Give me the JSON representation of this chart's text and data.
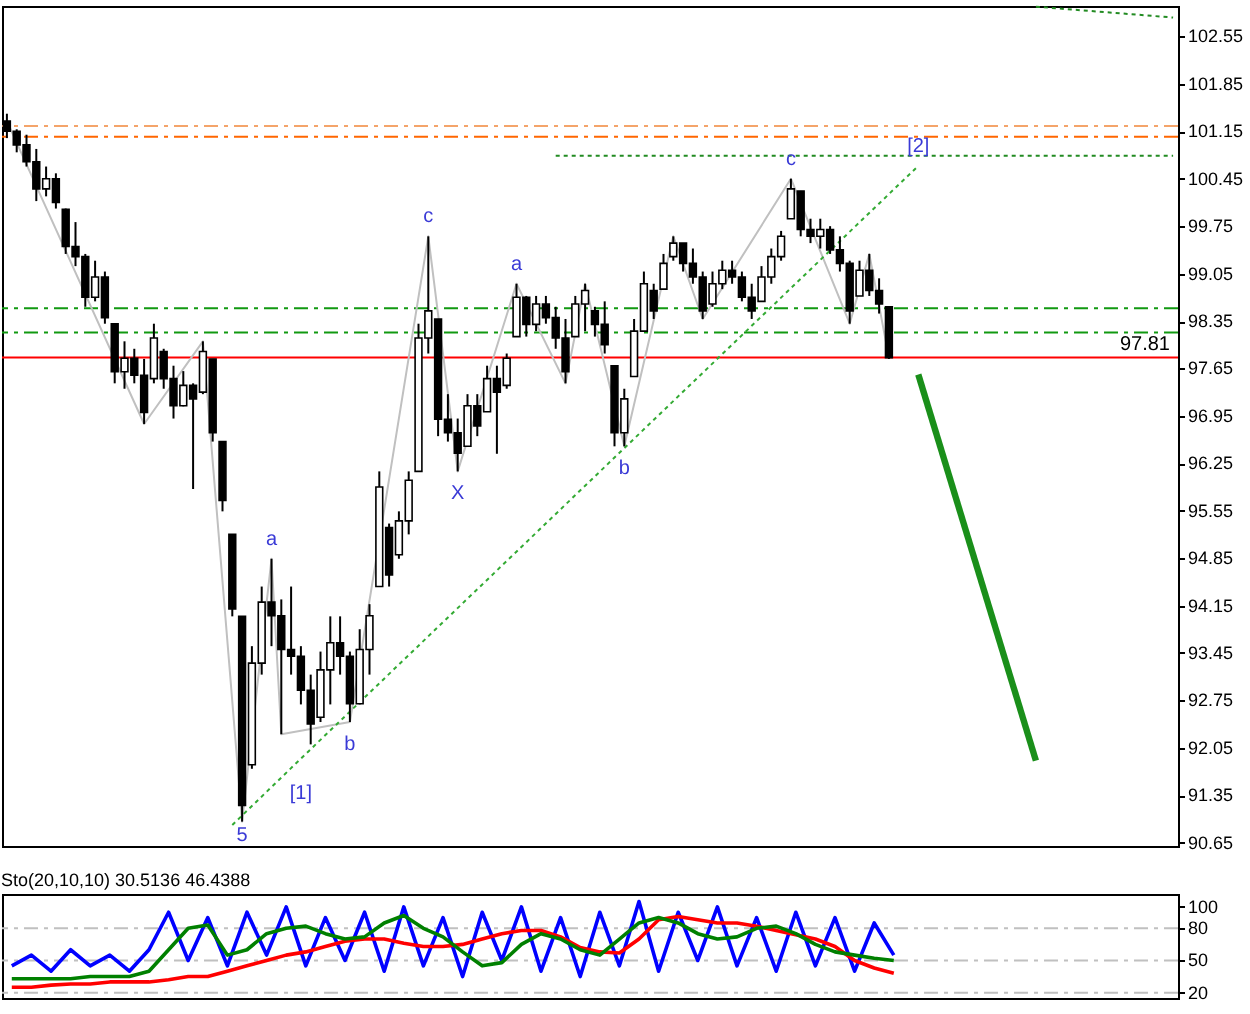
{
  "chart_data": [
    {
      "type": "candlestick",
      "color": "#000000",
      "categories": [
        null,
        null,
        null,
        null,
        null,
        null,
        null,
        null,
        null,
        null,
        null,
        null,
        null,
        null,
        null,
        null,
        null,
        null,
        null,
        null,
        null,
        null,
        null,
        null,
        null,
        null,
        null,
        null,
        null,
        null,
        null,
        null,
        null,
        null,
        null,
        null,
        null,
        null,
        null,
        null,
        null,
        null,
        null,
        null,
        null,
        null,
        null,
        null,
        null,
        null,
        null,
        null,
        null,
        null,
        null,
        null,
        null,
        null,
        null,
        null,
        null,
        null,
        null,
        null,
        null,
        null,
        null,
        null,
        null,
        null,
        null,
        null,
        null,
        null,
        null,
        null,
        null,
        null,
        null,
        null,
        null,
        null,
        null,
        null,
        null,
        null,
        null,
        null,
        null,
        null,
        null,
        null,
        null,
        null,
        null,
        null,
        null,
        null,
        null,
        null,
        null,
        null,
        null,
        null,
        null,
        null,
        null,
        null,
        null,
        null,
        null,
        null,
        null,
        null,
        null,
        null,
        null,
        null,
        null,
        null
      ],
      "ohlc": [
        [
          101.3,
          101.41,
          101.05,
          101.15
        ],
        [
          101.15,
          101.18,
          100.84,
          100.95
        ],
        [
          100.95,
          101.1,
          100.63,
          100.7
        ],
        [
          100.7,
          100.89,
          100.12,
          100.3
        ],
        [
          100.3,
          100.63,
          100.19,
          100.45
        ],
        [
          100.45,
          100.53,
          100.01,
          100.1
        ],
        [
          100.0,
          100.01,
          99.34,
          99.45
        ],
        [
          99.45,
          99.81,
          99.16,
          99.3
        ],
        [
          99.3,
          99.34,
          98.56,
          98.7
        ],
        [
          98.7,
          99.24,
          98.64,
          99.0
        ],
        [
          99.0,
          99.08,
          98.31,
          98.4
        ],
        [
          98.31,
          98.31,
          97.43,
          97.6
        ],
        [
          97.6,
          98.05,
          97.35,
          97.8
        ],
        [
          97.8,
          97.94,
          97.43,
          97.55
        ],
        [
          97.55,
          97.79,
          96.83,
          97.0
        ],
        [
          97.5,
          98.31,
          97.43,
          98.1
        ],
        [
          97.9,
          97.94,
          97.35,
          97.5
        ],
        [
          97.5,
          97.69,
          96.91,
          97.1
        ],
        [
          97.1,
          97.61,
          97.09,
          97.4
        ],
        [
          97.4,
          97.43,
          95.87,
          97.2
        ],
        [
          97.3,
          98.05,
          97.27,
          97.9
        ],
        [
          97.79,
          97.79,
          96.57,
          96.7
        ],
        [
          96.57,
          96.57,
          95.54,
          95.7
        ],
        [
          95.2,
          95.2,
          93.99,
          94.1
        ],
        [
          93.99,
          93.99,
          90.96,
          91.2
        ],
        [
          91.8,
          93.55,
          91.74,
          93.3
        ],
        [
          93.3,
          94.43,
          93.13,
          94.2
        ],
        [
          94.2,
          94.84,
          93.55,
          94.0
        ],
        [
          94.0,
          94.24,
          92.25,
          93.5
        ],
        [
          93.5,
          94.43,
          93.13,
          93.4
        ],
        [
          93.4,
          93.55,
          92.69,
          92.9
        ],
        [
          92.9,
          93.13,
          92.1,
          92.4
        ],
        [
          92.5,
          93.47,
          92.43,
          93.2
        ],
        [
          93.2,
          93.99,
          92.69,
          93.6
        ],
        [
          93.6,
          93.99,
          93.13,
          93.4
        ],
        [
          93.4,
          93.47,
          92.43,
          92.7
        ],
        [
          92.7,
          93.8,
          92.69,
          93.5
        ],
        [
          93.5,
          94.17,
          93.13,
          94.0
        ],
        [
          94.43,
          96.13,
          94.43,
          95.9
        ],
        [
          95.3,
          95.36,
          94.43,
          94.6
        ],
        [
          94.9,
          95.54,
          94.84,
          95.4
        ],
        [
          95.4,
          96.13,
          95.2,
          96.0
        ],
        [
          96.13,
          98.31,
          96.13,
          98.1
        ],
        [
          98.1,
          99.6,
          97.87,
          98.5
        ],
        [
          98.38,
          98.38,
          96.65,
          96.9
        ],
        [
          96.9,
          97.27,
          96.57,
          96.7
        ],
        [
          96.7,
          96.91,
          96.13,
          96.4
        ],
        [
          96.5,
          97.27,
          96.5,
          97.1
        ],
        [
          97.1,
          97.27,
          96.65,
          96.8
        ],
        [
          97.01,
          97.69,
          97.01,
          97.5
        ],
        [
          97.5,
          97.69,
          96.39,
          97.3
        ],
        [
          97.4,
          97.87,
          97.35,
          97.8
        ],
        [
          98.12,
          98.9,
          98.12,
          98.7
        ],
        [
          98.7,
          98.72,
          98.12,
          98.3
        ],
        [
          98.3,
          98.72,
          98.2,
          98.6
        ],
        [
          98.6,
          98.72,
          98.31,
          98.4
        ],
        [
          98.4,
          98.56,
          97.94,
          98.1
        ],
        [
          98.1,
          98.38,
          97.43,
          97.6
        ],
        [
          98.12,
          98.72,
          98.12,
          98.6
        ],
        [
          98.6,
          98.9,
          98.2,
          98.8
        ],
        [
          98.5,
          98.56,
          98.12,
          98.3
        ],
        [
          98.3,
          98.64,
          97.87,
          98.0
        ],
        [
          97.69,
          97.69,
          96.5,
          96.7
        ],
        [
          96.7,
          97.35,
          96.5,
          97.2
        ],
        [
          97.53,
          98.38,
          97.53,
          98.2
        ],
        [
          98.2,
          99.08,
          98.2,
          98.9
        ],
        [
          98.8,
          98.9,
          98.38,
          98.5
        ],
        [
          98.82,
          99.34,
          98.82,
          99.2
        ],
        [
          99.3,
          99.6,
          99.24,
          99.5
        ],
        [
          99.5,
          99.5,
          99.08,
          99.2
        ],
        [
          99.2,
          99.42,
          98.9,
          99.0
        ],
        [
          99.0,
          99.08,
          98.38,
          98.5
        ],
        [
          98.6,
          99.08,
          98.56,
          98.9
        ],
        [
          98.9,
          99.24,
          98.82,
          99.1
        ],
        [
          99.1,
          99.24,
          98.9,
          99.0
        ],
        [
          99.0,
          99.08,
          98.64,
          98.7
        ],
        [
          98.7,
          98.9,
          98.38,
          98.5
        ],
        [
          98.64,
          99.16,
          98.64,
          99.0
        ],
        [
          99.0,
          99.42,
          98.9,
          99.3
        ],
        [
          99.3,
          99.68,
          99.24,
          99.6
        ],
        [
          99.86,
          100.45,
          99.86,
          100.3
        ],
        [
          100.27,
          100.27,
          99.6,
          99.7
        ],
        [
          99.7,
          99.86,
          99.5,
          99.6
        ],
        [
          99.6,
          99.86,
          99.42,
          99.7
        ],
        [
          99.7,
          99.75,
          99.34,
          99.4
        ],
        [
          99.4,
          99.6,
          99.08,
          99.2
        ],
        [
          99.2,
          99.24,
          98.31,
          98.5
        ],
        [
          98.72,
          99.24,
          98.72,
          99.1
        ],
        [
          99.1,
          99.34,
          98.72,
          98.8
        ],
        [
          98.8,
          98.98,
          98.46,
          98.6
        ],
        [
          98.56,
          98.56,
          97.79,
          97.81
        ],
        null,
        null,
        null,
        null,
        null,
        null,
        null,
        null,
        null,
        null,
        null,
        null,
        null,
        null,
        null,
        null,
        null,
        null,
        null,
        null,
        null,
        null,
        null,
        null,
        null,
        null,
        null,
        null,
        null
      ],
      "series": [
        {
          "type": "line",
          "color": "#c0c0c0",
          "values": [
            101.3,
            null,
            null,
            null,
            null,
            null,
            null,
            null,
            null,
            null,
            null,
            null,
            null,
            null,
            96.83,
            null,
            null,
            null,
            null,
            null,
            98.05,
            null,
            null,
            null,
            90.96,
            null,
            null,
            94.84,
            92.25,
            null,
            null,
            null,
            null,
            null,
            null,
            92.43,
            null,
            null,
            null,
            null,
            null,
            null,
            null,
            99.6,
            null,
            null,
            96.13,
            null,
            null,
            null,
            null,
            null,
            98.9,
            null,
            null,
            null,
            null,
            97.43,
            null,
            98.9,
            null,
            null,
            null,
            96.5,
            null,
            null,
            null,
            null,
            99.6,
            null,
            null,
            98.38,
            null,
            null,
            null,
            null,
            null,
            null,
            null,
            null,
            100.45,
            null,
            null,
            null,
            null,
            null,
            98.31,
            null,
            99.34,
            null,
            97.81,
            null,
            null,
            null,
            null,
            null,
            null,
            null,
            null,
            null,
            null,
            null,
            null,
            null,
            null,
            null,
            null,
            null,
            null,
            null,
            null,
            null,
            null,
            null,
            null,
            null,
            null,
            null,
            null,
            null
          ]
        },
        {
          "type": "line",
          "color": "#33aa33",
          "line_style": "dotted",
          "values": [
            null,
            null,
            null,
            null,
            null,
            null,
            null,
            null,
            null,
            null,
            null,
            null,
            null,
            null,
            null,
            null,
            null,
            null,
            null,
            null,
            null,
            null,
            null,
            90.91,
            null,
            null,
            null,
            null,
            null,
            null,
            91.89,
            null,
            null,
            null,
            null,
            null,
            null,
            null,
            null,
            null,
            null,
            null,
            null,
            null,
            null,
            null,
            null,
            null,
            null,
            null,
            null,
            null,
            null,
            null,
            null,
            null,
            null,
            null,
            null,
            null,
            null,
            null,
            null,
            null,
            null,
            null,
            null,
            null,
            null,
            null,
            null,
            null,
            null,
            null,
            null,
            null,
            null,
            null,
            null,
            null,
            null,
            null,
            null,
            null,
            null,
            null,
            null,
            null,
            null,
            null,
            null,
            null,
            null,
            100.64,
            null,
            null,
            null,
            null,
            null,
            null,
            null,
            null,
            null,
            null,
            null,
            null,
            null,
            null,
            null,
            null,
            null,
            null,
            null,
            null,
            null,
            null,
            null,
            null,
            null,
            null
          ]
        },
        {
          "type": "line",
          "color": "#228b22",
          "line_style": "dotted",
          "values": [
            null,
            null,
            null,
            null,
            null,
            null,
            null,
            null,
            null,
            null,
            null,
            null,
            null,
            null,
            null,
            null,
            null,
            null,
            null,
            null,
            null,
            null,
            null,
            null,
            null,
            null,
            null,
            null,
            null,
            null,
            null,
            null,
            null,
            null,
            null,
            null,
            null,
            null,
            null,
            null,
            null,
            null,
            null,
            null,
            null,
            null,
            null,
            null,
            null,
            null,
            null,
            null,
            null,
            null,
            null,
            null,
            100.79,
            null,
            null,
            null,
            null,
            null,
            null,
            null,
            null,
            null,
            null,
            null,
            null,
            null,
            null,
            null,
            null,
            null,
            null,
            null,
            null,
            null,
            null,
            null,
            null,
            null,
            null,
            null,
            null,
            null,
            null,
            null,
            null,
            null,
            null,
            null,
            null,
            null,
            null,
            null,
            null,
            null,
            null,
            null,
            null,
            null,
            null,
            null,
            null,
            null,
            null,
            null,
            null,
            null,
            null,
            null,
            null,
            null,
            null,
            null,
            null,
            null,
            null,
            100.79
          ]
        },
        {
          "type": "line",
          "color": "#228b22",
          "line_style": "dotted",
          "values": [
            null,
            null,
            null,
            null,
            null,
            null,
            null,
            null,
            null,
            null,
            null,
            null,
            null,
            null,
            null,
            null,
            null,
            null,
            null,
            null,
            null,
            null,
            null,
            null,
            null,
            null,
            null,
            null,
            null,
            null,
            null,
            null,
            null,
            null,
            null,
            null,
            null,
            null,
            null,
            null,
            null,
            null,
            null,
            null,
            null,
            null,
            null,
            null,
            null,
            null,
            null,
            null,
            null,
            null,
            null,
            null,
            null,
            null,
            null,
            null,
            null,
            null,
            null,
            null,
            null,
            null,
            null,
            null,
            null,
            null,
            null,
            null,
            null,
            null,
            null,
            null,
            null,
            null,
            null,
            null,
            null,
            null,
            null,
            null,
            null,
            null,
            null,
            null,
            null,
            null,
            null,
            null,
            null,
            null,
            null,
            null,
            null,
            null,
            null,
            null,
            null,
            null,
            null,
            null,
            null,
            102.99,
            null,
            null,
            null,
            null,
            null,
            null,
            null,
            null,
            null,
            null,
            null,
            null,
            null,
            102.83
          ]
        },
        {
          "type": "line",
          "color": "#1a8f1a",
          "values": [
            null,
            null,
            null,
            null,
            null,
            null,
            null,
            null,
            null,
            null,
            null,
            null,
            null,
            null,
            null,
            null,
            null,
            null,
            null,
            null,
            null,
            null,
            null,
            null,
            null,
            null,
            null,
            null,
            null,
            null,
            null,
            null,
            null,
            null,
            null,
            null,
            null,
            null,
            null,
            null,
            null,
            null,
            null,
            null,
            null,
            null,
            null,
            null,
            null,
            null,
            null,
            null,
            null,
            null,
            null,
            null,
            null,
            null,
            null,
            null,
            null,
            null,
            null,
            null,
            null,
            null,
            null,
            null,
            null,
            null,
            null,
            null,
            null,
            null,
            null,
            null,
            null,
            null,
            null,
            null,
            null,
            null,
            null,
            null,
            null,
            null,
            null,
            null,
            null,
            null,
            null,
            null,
            null,
            97.56,
            null,
            null,
            null,
            null,
            null,
            null,
            null,
            null,
            null,
            null,
            null,
            91.86,
            null,
            null,
            null,
            null,
            null,
            null,
            null,
            null,
            null,
            null,
            null,
            null,
            null,
            null
          ]
        }
      ],
      "annotations": [
        {
          "text": "5",
          "y": 90.96
        },
        {
          "text": "a",
          "y": 94.84
        },
        {
          "text": "b",
          "y": 92.43
        },
        {
          "text": "c",
          "y": 99.6
        },
        {
          "text": "X",
          "y": 96.13
        },
        {
          "text": "a",
          "y": 98.9
        },
        {
          "text": "b",
          "y": 96.5
        },
        {
          "text": "c",
          "y": 100.45
        },
        {
          "text": "[1]",
          "y": 91.89
        },
        {
          "text": "[2]",
          "y": 100.64
        }
      ],
      "ylim": [
        90.6,
        103.0
      ],
      "yticks": [
        102.55,
        101.85,
        101.15,
        100.45,
        99.75,
        99.05,
        98.35,
        97.65,
        96.95,
        96.25,
        95.55,
        94.85,
        94.15,
        93.45,
        92.75,
        92.05,
        91.35,
        90.65
      ],
      "tick_labels": "y",
      "ref_lines": [
        {
          "axis": "y",
          "value": 101.23,
          "color": "#f4a46a",
          "line_style": "dashed"
        },
        {
          "axis": "y",
          "value": 101.07,
          "color": "#ff6600",
          "line_style": "dashed"
        },
        {
          "axis": "y",
          "value": 98.54,
          "color": "#119911",
          "line_style": "dashed"
        },
        {
          "axis": "y",
          "value": 98.18,
          "color": "#119911",
          "line_style": "dashed"
        },
        {
          "axis": "y",
          "value": 97.81,
          "color": "#ff0000",
          "label": "97.81"
        }
      ]
    },
    {
      "type": "line",
      "title": "Sto(20,10,10) 30.5136 46.4388",
      "categories": [
        null,
        null,
        null,
        null,
        null,
        null,
        null,
        null,
        null,
        null,
        null,
        null,
        null,
        null,
        null,
        null,
        null,
        null,
        null,
        null,
        null,
        null,
        null,
        null,
        null,
        null,
        null,
        null,
        null,
        null,
        null,
        null,
        null,
        null,
        null,
        null,
        null,
        null,
        null,
        null,
        null,
        null,
        null,
        null,
        null,
        null,
        null,
        null,
        null,
        null,
        null,
        null,
        null,
        null,
        null,
        null,
        null,
        null,
        null,
        null
      ],
      "series": [
        {
          "color": "#0000ff",
          "values": [
            45,
            55,
            40,
            60,
            45,
            55,
            40,
            60,
            95,
            50,
            90,
            45,
            95,
            55,
            100,
            45,
            90,
            50,
            95,
            40,
            100,
            45,
            90,
            35,
            95,
            50,
            100,
            40,
            90,
            35,
            95,
            45,
            105,
            40,
            95,
            50,
            100,
            45,
            90,
            40,
            95,
            45,
            90,
            40,
            85,
            55,
            null,
            null,
            null,
            null,
            null,
            null,
            null,
            null,
            null,
            null,
            null,
            null,
            null,
            null
          ]
        },
        {
          "color": "#ff0000",
          "values": [
            25,
            25,
            27,
            28,
            28,
            30,
            30,
            30,
            32,
            35,
            35,
            40,
            45,
            50,
            55,
            58,
            63,
            68,
            70,
            70,
            66,
            63,
            63,
            65,
            70,
            75,
            78,
            78,
            72,
            62,
            58,
            57,
            70,
            88,
            91,
            88,
            85,
            85,
            82,
            78,
            74,
            70,
            63,
            50,
            43,
            38,
            null,
            null,
            null,
            null,
            null,
            null,
            null,
            null,
            null,
            null,
            null,
            null,
            null,
            null
          ]
        },
        {
          "color": "#008000",
          "values": [
            33,
            33,
            33,
            33,
            35,
            35,
            35,
            40,
            60,
            80,
            83,
            55,
            60,
            75,
            80,
            82,
            75,
            70,
            72,
            85,
            92,
            80,
            72,
            58,
            45,
            48,
            65,
            75,
            70,
            60,
            55,
            70,
            85,
            90,
            85,
            75,
            70,
            72,
            80,
            82,
            75,
            65,
            58,
            55,
            52,
            50,
            null,
            null,
            null,
            null,
            null,
            null,
            null,
            null,
            null,
            null,
            null,
            null,
            null,
            null
          ]
        }
      ],
      "ylim": [
        15,
        112
      ],
      "yticks": [
        100,
        80,
        50,
        20
      ],
      "tick_labels": "y",
      "ref_lines": [
        {
          "axis": "y",
          "value": 80,
          "color": "#c0c0c0",
          "line_style": "dashed"
        },
        {
          "axis": "y",
          "value": 50,
          "color": "#c0c0c0",
          "line_style": "dashed"
        },
        {
          "axis": "y",
          "value": 20,
          "color": "#c0c0c0",
          "line_style": "dashed"
        }
      ]
    }
  ]
}
